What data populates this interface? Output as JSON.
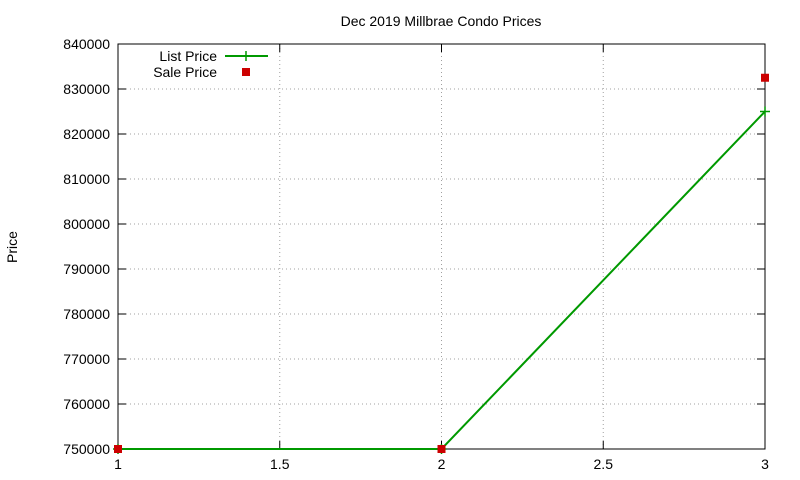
{
  "chart_data": {
    "type": "line",
    "title": "Dec 2019 Millbrae Condo Prices",
    "xlabel": "",
    "ylabel": "Price",
    "xlim": [
      1,
      3
    ],
    "ylim": [
      750000,
      840000
    ],
    "x_ticks": [
      "1",
      "1.5",
      "2",
      "2.5",
      "3"
    ],
    "y_ticks": [
      "750000",
      "760000",
      "770000",
      "780000",
      "790000",
      "800000",
      "810000",
      "820000",
      "830000",
      "840000"
    ],
    "grid": true,
    "legend_position": "top-left",
    "series": [
      {
        "name": "List Price",
        "style": "linespoints",
        "color": "#009900",
        "x": [
          1,
          2,
          3
        ],
        "y": [
          750000,
          750000,
          825000
        ]
      },
      {
        "name": "Sale Price",
        "style": "points",
        "color": "#cc0000",
        "x": [
          1,
          2,
          3
        ],
        "y": [
          750000,
          750000,
          832500
        ]
      }
    ]
  }
}
